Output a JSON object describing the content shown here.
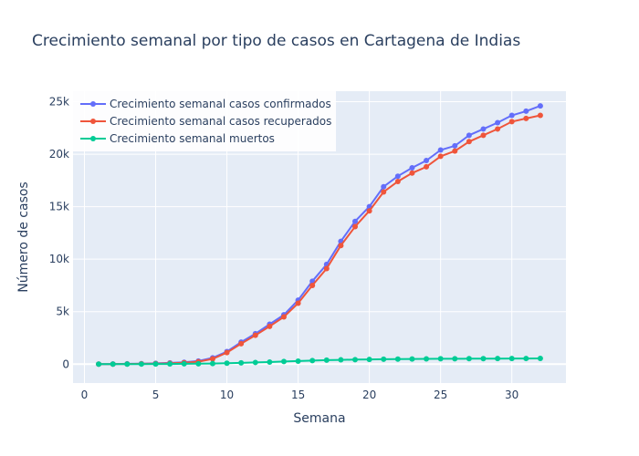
{
  "chart_data": {
    "type": "line",
    "title": "Crecimiento semanal por tipo de casos en Cartagena de Indias",
    "xlabel": "Semana",
    "ylabel": "Número de casos",
    "xlim": [
      -0.8,
      33.8
    ],
    "ylim": [
      -1800,
      26000
    ],
    "x_ticks": [
      0,
      5,
      10,
      15,
      20,
      25,
      30
    ],
    "x_tick_labels": [
      "0",
      "5",
      "10",
      "15",
      "20",
      "25",
      "30"
    ],
    "y_ticks": [
      0,
      5000,
      10000,
      15000,
      20000,
      25000
    ],
    "y_tick_labels": [
      "0",
      "5k",
      "10k",
      "15k",
      "20k",
      "25k"
    ],
    "grid": true,
    "legend_position": "top-left",
    "x": [
      1,
      2,
      3,
      4,
      5,
      6,
      7,
      8,
      9,
      10,
      11,
      12,
      13,
      14,
      15,
      16,
      17,
      18,
      19,
      20,
      21,
      22,
      23,
      24,
      25,
      26,
      27,
      28,
      29,
      30,
      31,
      32
    ],
    "series": [
      {
        "name": "Crecimiento semanal casos confirmados",
        "color": "#636efa",
        "values": [
          5,
          10,
          30,
          50,
          80,
          120,
          180,
          300,
          600,
          1200,
          2100,
          2900,
          3800,
          4700,
          6100,
          7900,
          9500,
          11700,
          13600,
          15000,
          16900,
          17900,
          18700,
          19400,
          20400,
          20800,
          21800,
          22400,
          23000,
          23700,
          24100,
          24600
        ]
      },
      {
        "name": "Crecimiento semanal casos recuperados",
        "color": "#ef553b",
        "values": [
          0,
          5,
          15,
          30,
          50,
          80,
          130,
          230,
          500,
          1100,
          1950,
          2750,
          3600,
          4500,
          5800,
          7500,
          9100,
          11300,
          13100,
          14600,
          16400,
          17400,
          18200,
          18800,
          19800,
          20300,
          21200,
          21800,
          22400,
          23100,
          23400,
          23700
        ]
      },
      {
        "name": "Crecimiento semanal muertos",
        "color": "#00cc96",
        "values": [
          0,
          2,
          5,
          8,
          12,
          20,
          30,
          40,
          60,
          90,
          120,
          160,
          200,
          250,
          290,
          340,
          380,
          410,
          430,
          450,
          470,
          480,
          490,
          500,
          510,
          515,
          520,
          525,
          530,
          535,
          540,
          545
        ]
      }
    ]
  }
}
